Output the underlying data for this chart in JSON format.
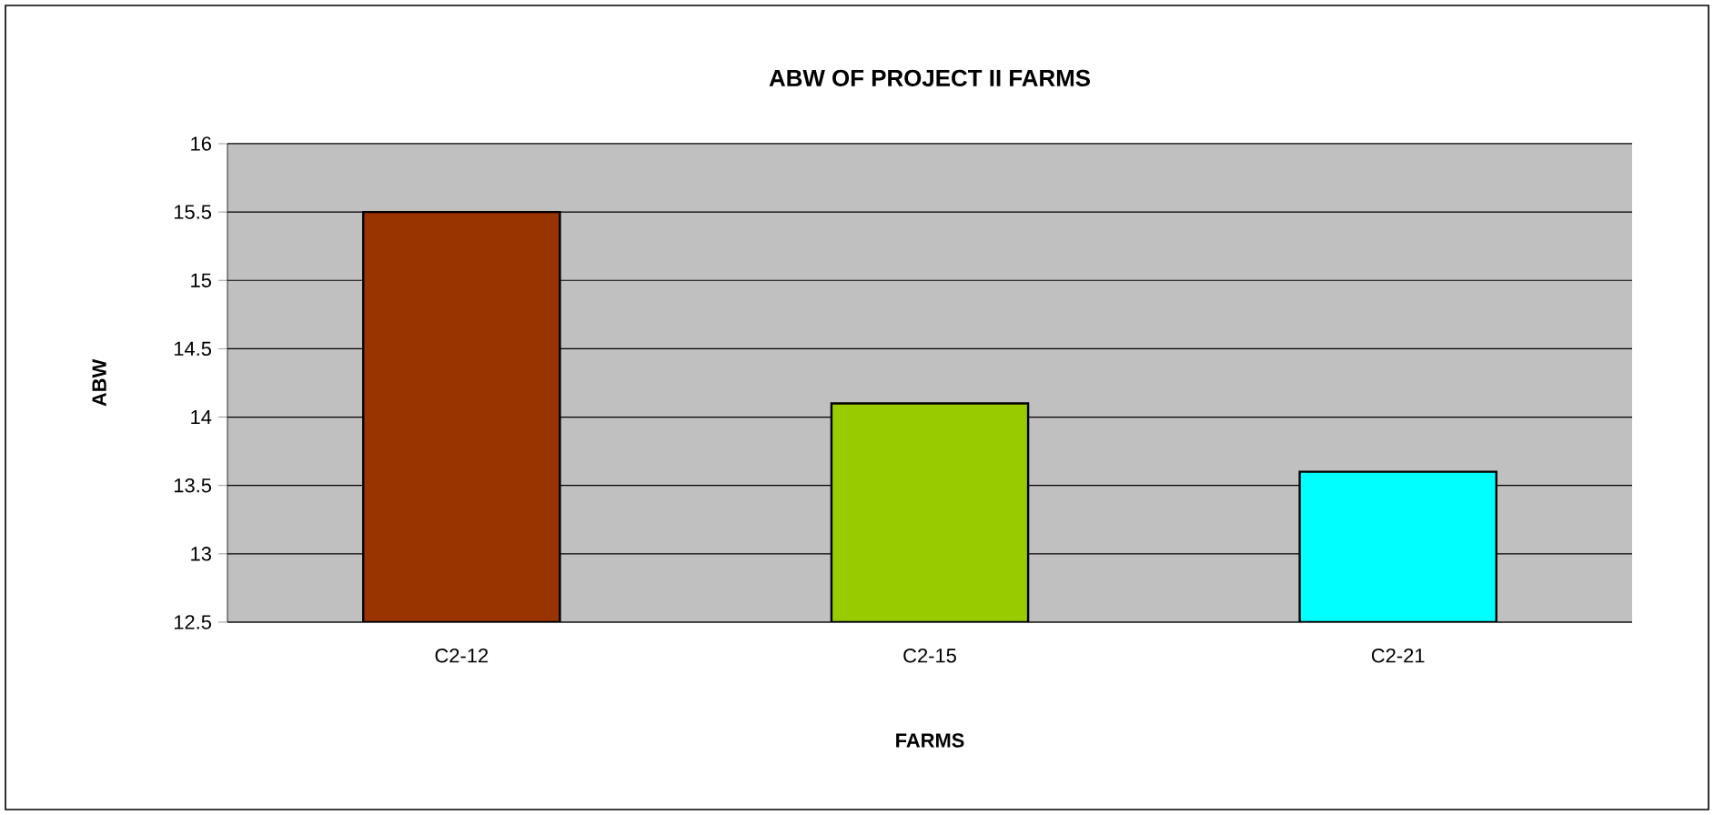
{
  "chart_data": {
    "type": "bar",
    "title": "ABW OF PROJECT II FARMS",
    "xlabel": "FARMS",
    "ylabel": "ABW",
    "categories": [
      "C2-12",
      "C2-15",
      "C2-21"
    ],
    "values": [
      15.5,
      14.1,
      13.6
    ],
    "colors": [
      "#993300",
      "#99cc00",
      "#00ffff"
    ],
    "ylim": [
      12.5,
      16
    ],
    "yticks": [
      12.5,
      13,
      13.5,
      14,
      14.5,
      15,
      15.5,
      16
    ],
    "grid": "y"
  }
}
